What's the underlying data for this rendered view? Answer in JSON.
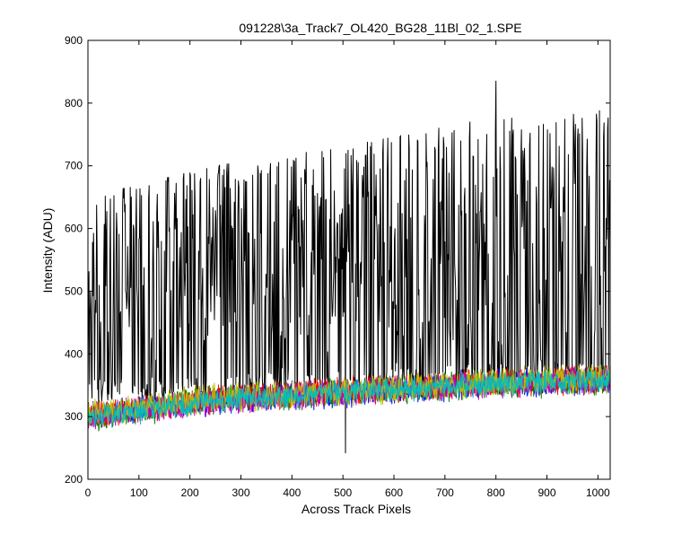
{
  "chart_data": {
    "type": "line",
    "title": "091228\\3a_Track7_OL420_BG28_11Bl_02_1.SPE",
    "xlabel": "Across Track Pixels",
    "ylabel": "Intensity (ADU)",
    "xlim": [
      0,
      1024
    ],
    "ylim": [
      200,
      900
    ],
    "x_ticks": [
      0,
      100,
      200,
      300,
      400,
      500,
      600,
      700,
      800,
      900,
      1000
    ],
    "y_ticks": [
      200,
      300,
      400,
      500,
      600,
      700,
      800,
      900
    ],
    "grid": false,
    "legend": "none",
    "series": [
      {
        "color": "#000000",
        "style": "dense noisy signal",
        "baseline": [
          [
            0,
            330
          ],
          [
            250,
            340
          ],
          [
            500,
            345
          ],
          [
            750,
            355
          ],
          [
            1024,
            360
          ]
        ],
        "peak_max": [
          [
            0,
            650
          ],
          [
            250,
            700
          ],
          [
            500,
            730
          ],
          [
            750,
            770
          ],
          [
            1024,
            790
          ]
        ],
        "notable_values": [
          {
            "x": 505,
            "y": 242
          },
          {
            "x": 800,
            "y": 835
          }
        ]
      },
      {
        "color": "#0000ff",
        "style": "noise band",
        "center": [
          [
            0,
            302
          ],
          [
            250,
            325
          ],
          [
            500,
            337
          ],
          [
            750,
            350
          ],
          [
            1024,
            357
          ]
        ],
        "noise": 16
      },
      {
        "color": "#008000",
        "style": "noise band",
        "center": [
          [
            0,
            298
          ],
          [
            250,
            327
          ],
          [
            500,
            338
          ],
          [
            750,
            350
          ],
          [
            1024,
            358
          ]
        ],
        "noise": 16
      },
      {
        "color": "#ff0000",
        "style": "noise band",
        "center": [
          [
            0,
            300
          ],
          [
            250,
            328
          ],
          [
            500,
            339
          ],
          [
            750,
            352
          ],
          [
            1024,
            360
          ]
        ],
        "noise": 16
      },
      {
        "color": "#bf00bf",
        "style": "noise band",
        "center": [
          [
            0,
            301
          ],
          [
            250,
            326
          ],
          [
            500,
            338
          ],
          [
            750,
            351
          ],
          [
            1024,
            358
          ]
        ],
        "noise": 16
      },
      {
        "color": "#bfbf00",
        "style": "noise band",
        "center": [
          [
            0,
            303
          ],
          [
            250,
            329
          ],
          [
            500,
            340
          ],
          [
            750,
            352
          ],
          [
            1024,
            361
          ]
        ],
        "noise": 16
      },
      {
        "color": "#00bfbf",
        "style": "noise band",
        "center": [
          [
            0,
            299
          ],
          [
            250,
            326
          ],
          [
            500,
            339
          ],
          [
            750,
            351
          ],
          [
            1024,
            359
          ]
        ],
        "noise": 14
      }
    ]
  }
}
